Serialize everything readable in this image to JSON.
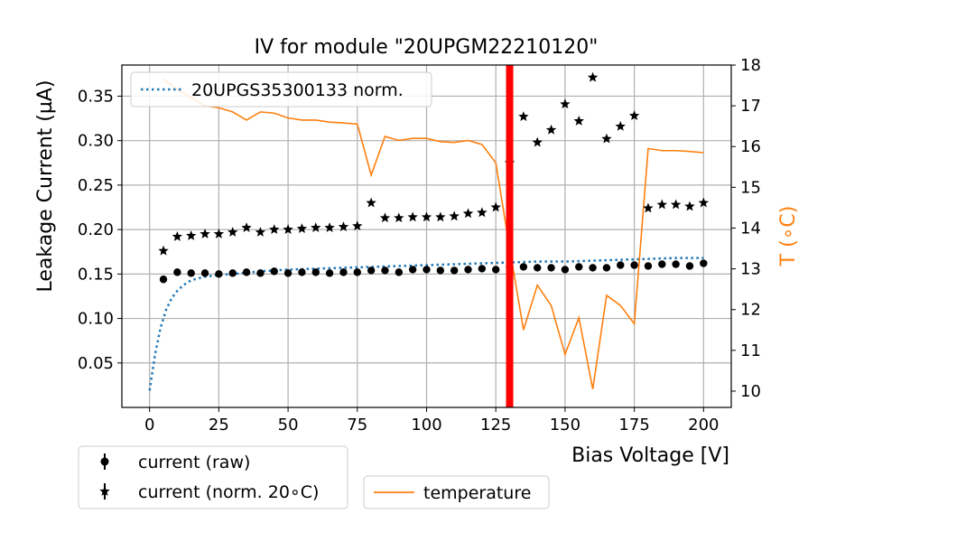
{
  "chart_data": {
    "type": "scatter",
    "title": "IV for module \"20UPGM22210120\"",
    "xlabel": "Bias Voltage [V]",
    "ylabel": "Leakage Current (µA)",
    "y2label": "T (∘C)",
    "xlim": [
      -10,
      210
    ],
    "ylim": [
      0.0,
      0.385
    ],
    "y2lim": [
      9.6,
      18.0
    ],
    "xticks": [
      0,
      25,
      50,
      75,
      100,
      125,
      150,
      175,
      200
    ],
    "yticks": [
      0.05,
      0.1,
      0.15,
      0.2,
      0.25,
      0.3,
      0.35
    ],
    "y2ticks": [
      10,
      11,
      12,
      13,
      14,
      15,
      16,
      17,
      18
    ],
    "grid": true,
    "vline": {
      "x": 130,
      "color": "#ff0000"
    },
    "colors": {
      "raw": "#000000",
      "norm": "#000000",
      "reference": "#1f77b4",
      "temperature": "#ff7f0e"
    },
    "series": [
      {
        "name": "current (raw)",
        "marker": "circle",
        "x": [
          5,
          10,
          15,
          20,
          25,
          30,
          35,
          40,
          45,
          50,
          55,
          60,
          65,
          70,
          75,
          80,
          85,
          90,
          95,
          100,
          105,
          110,
          115,
          120,
          125,
          130,
          135,
          140,
          145,
          150,
          155,
          160,
          165,
          170,
          175,
          180,
          185,
          190,
          195,
          200
        ],
        "values": [
          0.144,
          0.152,
          0.151,
          0.151,
          0.15,
          0.151,
          0.152,
          0.151,
          0.153,
          0.151,
          0.152,
          0.152,
          0.151,
          0.152,
          0.152,
          0.154,
          0.154,
          0.152,
          0.155,
          0.155,
          0.154,
          0.154,
          0.155,
          0.156,
          0.155,
          0.158,
          0.158,
          0.157,
          0.157,
          0.155,
          0.158,
          0.157,
          0.157,
          0.16,
          0.16,
          0.159,
          0.161,
          0.161,
          0.159,
          0.162
        ]
      },
      {
        "name": "current (norm. 20∘C)",
        "marker": "star",
        "x": [
          5,
          10,
          15,
          20,
          25,
          30,
          35,
          40,
          45,
          50,
          55,
          60,
          65,
          70,
          75,
          80,
          85,
          90,
          95,
          100,
          105,
          110,
          115,
          120,
          125,
          130,
          135,
          140,
          145,
          150,
          155,
          160,
          165,
          170,
          175,
          180,
          185,
          190,
          195,
          200
        ],
        "values": [
          0.176,
          0.192,
          0.193,
          0.195,
          0.195,
          0.197,
          0.202,
          0.197,
          0.2,
          0.2,
          0.201,
          0.202,
          0.202,
          0.203,
          0.204,
          0.23,
          0.213,
          0.213,
          0.214,
          0.214,
          0.214,
          0.215,
          0.218,
          0.219,
          0.225,
          0.275,
          0.327,
          0.298,
          0.312,
          0.341,
          0.322,
          0.371,
          0.302,
          0.316,
          0.328,
          0.224,
          0.228,
          0.228,
          0.226,
          0.23
        ]
      },
      {
        "name": "20UPGS35300133 norm.",
        "style": "dotted-line",
        "x": [
          0,
          2,
          4,
          6,
          8,
          10,
          12,
          15,
          20,
          25,
          30,
          40,
          50,
          60,
          70,
          80,
          90,
          100,
          110,
          120,
          130,
          140,
          150,
          160,
          170,
          180,
          190,
          200
        ],
        "values": [
          0.019,
          0.06,
          0.09,
          0.11,
          0.123,
          0.131,
          0.137,
          0.143,
          0.147,
          0.149,
          0.15,
          0.153,
          0.155,
          0.156,
          0.157,
          0.158,
          0.159,
          0.16,
          0.161,
          0.162,
          0.163,
          0.164,
          0.164,
          0.165,
          0.166,
          0.167,
          0.168,
          0.168
        ]
      },
      {
        "name": "temperature",
        "style": "line",
        "axis": "right",
        "x": [
          5,
          10,
          15,
          20,
          25,
          30,
          35,
          40,
          45,
          50,
          55,
          60,
          65,
          70,
          75,
          80,
          85,
          90,
          95,
          100,
          105,
          110,
          115,
          120,
          125,
          130,
          135,
          140,
          145,
          150,
          155,
          160,
          165,
          170,
          175,
          180,
          185,
          190,
          195,
          200
        ],
        "values": [
          17.65,
          17.4,
          17.2,
          17.0,
          16.95,
          16.85,
          16.65,
          16.85,
          16.82,
          16.7,
          16.65,
          16.65,
          16.6,
          16.58,
          16.55,
          15.3,
          16.25,
          16.15,
          16.2,
          16.2,
          16.12,
          16.1,
          16.15,
          16.05,
          15.6,
          13.5,
          11.5,
          12.6,
          12.1,
          10.9,
          11.8,
          10.05,
          12.35,
          12.1,
          11.65,
          15.95,
          15.9,
          15.9,
          15.88,
          15.85
        ]
      }
    ],
    "legends": {
      "upper_left": [
        "20UPGS35300133 norm."
      ],
      "below_left": [
        "current (raw)",
        "current (norm. 20∘C)"
      ],
      "below_right": [
        "temperature"
      ]
    }
  }
}
